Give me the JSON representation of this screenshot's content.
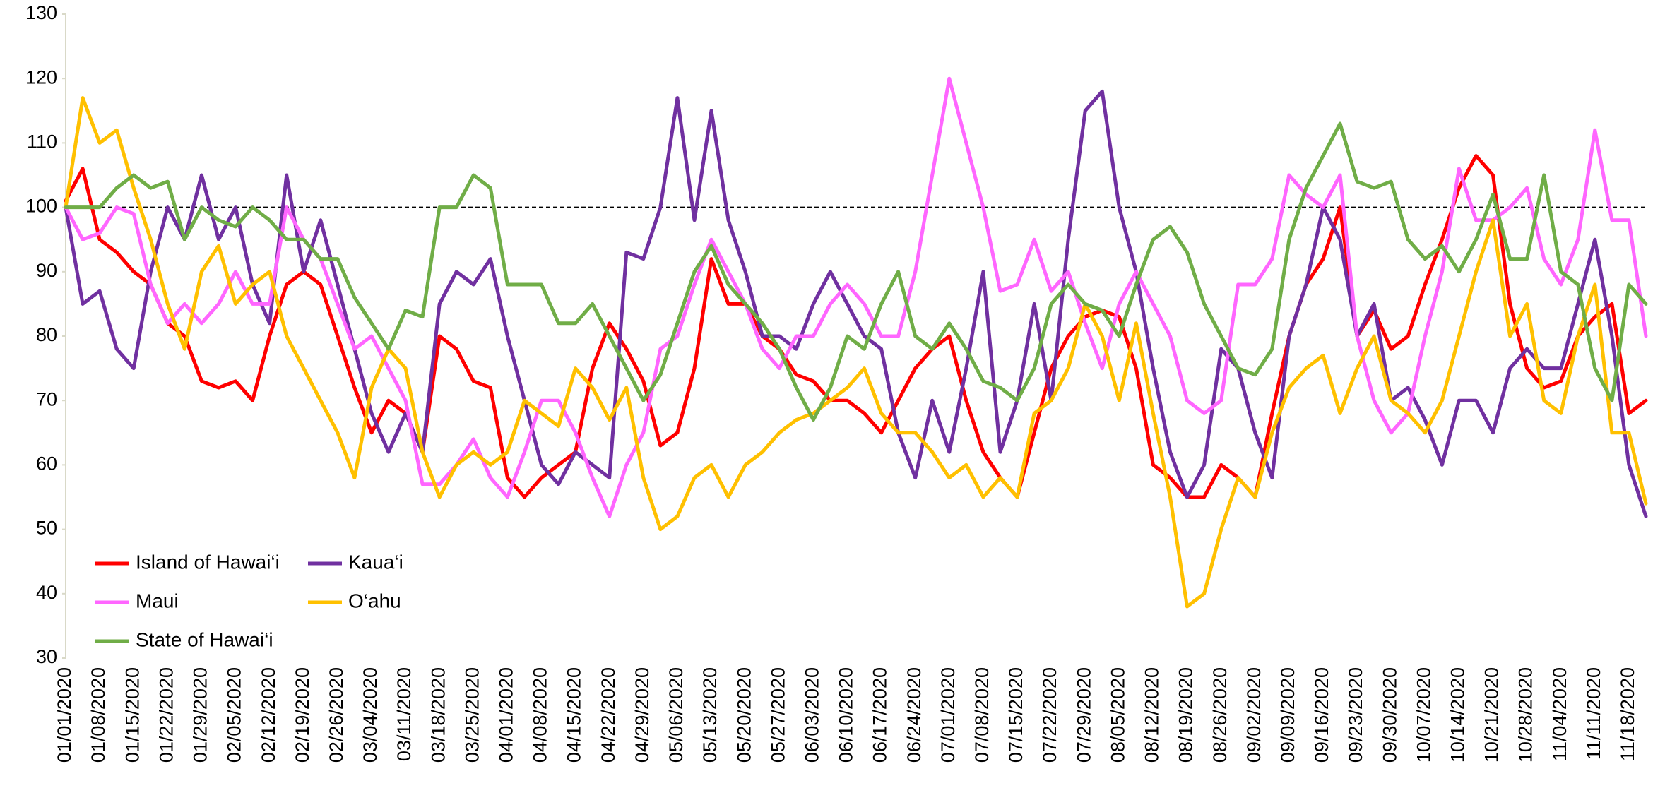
{
  "chart_data": {
    "type": "line",
    "categories": [
      "01/01/2020",
      null,
      "01/08/2020",
      null,
      "01/15/2020",
      null,
      "01/22/2020",
      null,
      "01/29/2020",
      null,
      "02/05/2020",
      null,
      "02/12/2020",
      null,
      "02/19/2020",
      null,
      "02/26/2020",
      null,
      "03/04/2020",
      null,
      "03/11/2020",
      null,
      "03/18/2020",
      null,
      "03/25/2020",
      null,
      "04/01/2020",
      null,
      "04/08/2020",
      null,
      "04/15/2020",
      null,
      "04/22/2020",
      null,
      "04/29/2020",
      null,
      "05/06/2020",
      null,
      "05/13/2020",
      null,
      "05/20/2020",
      null,
      "05/27/2020",
      null,
      "06/03/2020",
      null,
      "06/10/2020",
      null,
      "06/17/2020",
      null,
      "06/24/2020",
      null,
      "07/01/2020",
      null,
      "07/08/2020",
      null,
      "07/15/2020",
      null,
      "07/22/2020",
      null,
      "07/29/2020",
      null,
      "08/05/2020",
      null,
      "08/12/2020",
      null,
      "08/19/2020",
      null,
      "08/26/2020",
      null,
      "09/02/2020",
      null,
      "09/09/2020",
      null,
      "09/16/2020",
      null,
      "09/23/2020",
      null,
      "09/30/2020",
      null,
      "10/07/2020",
      null,
      "10/14/2020",
      null,
      "10/21/2020",
      null,
      "10/28/2020",
      null,
      "11/04/2020",
      null,
      "11/11/2020",
      null,
      "11/18/2020",
      null
    ],
    "series": [
      {
        "name": "Island of Hawai‘i",
        "color": "#ff0000",
        "values": [
          101,
          106,
          95,
          93,
          90,
          88,
          82,
          80,
          73,
          72,
          73,
          70,
          80,
          88,
          90,
          88,
          80,
          72,
          65,
          70,
          68,
          62,
          80,
          78,
          73,
          72,
          58,
          55,
          58,
          60,
          62,
          75,
          82,
          78,
          73,
          63,
          65,
          75,
          92,
          85,
          85,
          80,
          78,
          74,
          73,
          70,
          70,
          68,
          65,
          70,
          75,
          78,
          80,
          70,
          62,
          58,
          55,
          65,
          75,
          80,
          83,
          84,
          83,
          75,
          60,
          58,
          55,
          55,
          60,
          58,
          55,
          68,
          80,
          88,
          92,
          100,
          80,
          84,
          78,
          80,
          88,
          95,
          103,
          108,
          105,
          85,
          75,
          72,
          73,
          80,
          83,
          85,
          68,
          70
        ]
      },
      {
        "name": "Kaua‘i",
        "color": "#7030a0",
        "values": [
          100,
          85,
          87,
          78,
          75,
          90,
          100,
          95,
          105,
          95,
          100,
          88,
          82,
          105,
          90,
          98,
          88,
          78,
          68,
          62,
          68,
          62,
          85,
          90,
          88,
          92,
          80,
          70,
          60,
          57,
          62,
          60,
          58,
          93,
          92,
          100,
          117,
          98,
          115,
          98,
          90,
          80,
          80,
          78,
          85,
          90,
          85,
          80,
          78,
          65,
          58,
          70,
          62,
          75,
          90,
          62,
          70,
          85,
          70,
          95,
          115,
          118,
          100,
          90,
          75,
          62,
          55,
          60,
          78,
          75,
          65,
          58,
          80,
          88,
          100,
          95,
          80,
          85,
          70,
          72,
          67,
          60,
          70,
          70,
          65,
          75,
          78,
          75,
          75,
          85,
          95,
          80,
          60,
          52
        ]
      },
      {
        "name": "Maui",
        "color": "#ff66ff",
        "values": [
          100,
          95,
          96,
          100,
          99,
          88,
          82,
          85,
          82,
          85,
          90,
          85,
          85,
          100,
          95,
          92,
          85,
          78,
          80,
          75,
          70,
          57,
          57,
          60,
          64,
          58,
          55,
          62,
          70,
          70,
          65,
          58,
          52,
          60,
          65,
          78,
          80,
          88,
          95,
          90,
          85,
          78,
          75,
          80,
          80,
          85,
          88,
          85,
          80,
          80,
          90,
          105,
          120,
          110,
          100,
          87,
          88,
          95,
          87,
          90,
          82,
          75,
          85,
          90,
          85,
          80,
          70,
          68,
          70,
          88,
          88,
          92,
          105,
          102,
          100,
          105,
          80,
          70,
          65,
          68,
          80,
          90,
          106,
          98,
          98,
          100,
          103,
          92,
          88,
          95,
          112,
          98,
          98,
          80
        ]
      },
      {
        "name": "O‘ahu",
        "color": "#ffc000",
        "values": [
          100,
          117,
          110,
          112,
          103,
          95,
          85,
          78,
          90,
          94,
          85,
          88,
          90,
          80,
          75,
          70,
          65,
          58,
          72,
          78,
          75,
          62,
          55,
          60,
          62,
          60,
          62,
          70,
          68,
          66,
          75,
          72,
          67,
          72,
          58,
          50,
          52,
          58,
          60,
          55,
          60,
          62,
          65,
          67,
          68,
          70,
          72,
          75,
          68,
          65,
          65,
          62,
          58,
          60,
          55,
          58,
          55,
          68,
          70,
          75,
          85,
          80,
          70,
          82,
          68,
          55,
          38,
          40,
          50,
          58,
          55,
          65,
          72,
          75,
          77,
          68,
          75,
          80,
          70,
          68,
          65,
          70,
          80,
          90,
          98,
          80,
          85,
          70,
          68,
          80,
          88,
          65,
          65,
          54
        ]
      },
      {
        "name": "State of Hawai‘i",
        "color": "#70ad47",
        "values": [
          100,
          100,
          100,
          103,
          105,
          103,
          104,
          95,
          100,
          98,
          97,
          100,
          98,
          95,
          95,
          92,
          92,
          86,
          82,
          78,
          84,
          83,
          100,
          100,
          105,
          103,
          88,
          88,
          88,
          82,
          82,
          85,
          80,
          75,
          70,
          74,
          82,
          90,
          94,
          88,
          85,
          82,
          78,
          72,
          67,
          72,
          80,
          78,
          85,
          90,
          80,
          78,
          82,
          78,
          73,
          72,
          70,
          75,
          85,
          88,
          85,
          84,
          80,
          88,
          95,
          97,
          93,
          85,
          80,
          75,
          74,
          78,
          95,
          103,
          108,
          113,
          104,
          103,
          104,
          95,
          92,
          94,
          90,
          95,
          102,
          92,
          92,
          105,
          90,
          88,
          75,
          70,
          88,
          85
        ]
      }
    ],
    "ylim": [
      30,
      130
    ],
    "yticks": [
      30,
      40,
      50,
      60,
      70,
      80,
      90,
      100,
      110,
      120,
      130
    ],
    "reference_line": 100,
    "legend": "lower left",
    "grid": false
  }
}
